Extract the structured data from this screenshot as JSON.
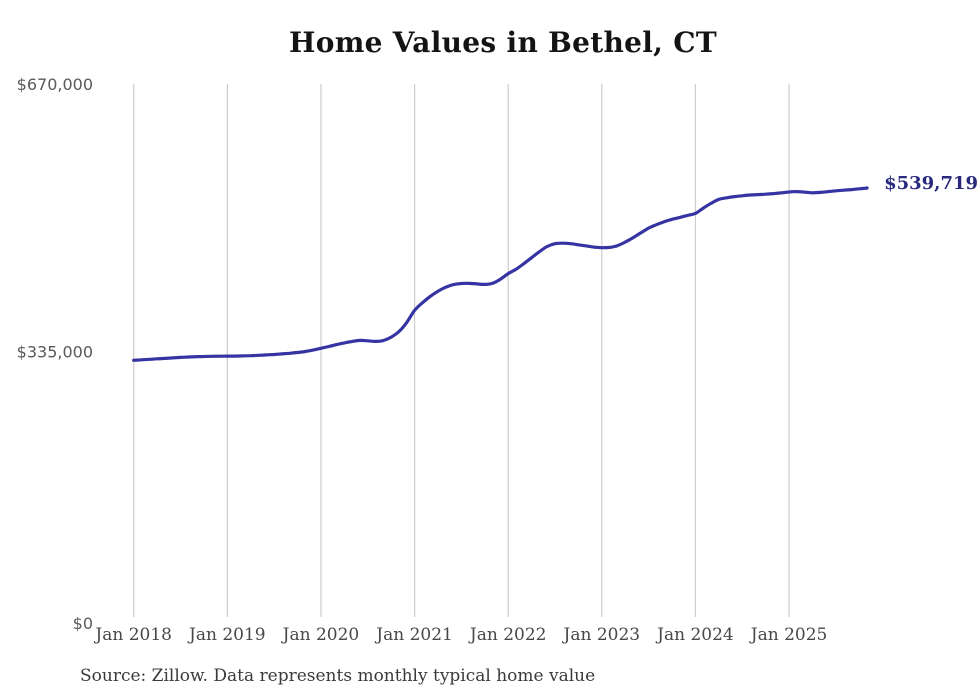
{
  "chart_data": {
    "type": "line",
    "title": "Home Values in Bethel, CT",
    "series_name": "Monthly typical home value",
    "x_interval": "month",
    "x_start": "Jan 2018",
    "x_end": "Nov 2025",
    "x_tick_labels": [
      "Jan 2018",
      "Jan 2019",
      "Jan 2020",
      "Jan 2021",
      "Jan 2022",
      "Jan 2023",
      "Jan 2024",
      "Jan 2025"
    ],
    "y_tick_labels": [
      "$0",
      "$335,000",
      "$670,000"
    ],
    "y_tick_values": [
      0,
      335000,
      670000
    ],
    "ylim": [
      0,
      670000
    ],
    "grid": "vertical-only",
    "legend": "none",
    "line_color": "#3634a3",
    "grid_color": "#cccccc",
    "end_label": "$539,719",
    "end_label_color": "#28287d",
    "last_value": 539719,
    "values": [
      324000,
      324600,
      325200,
      325800,
      326400,
      327000,
      327600,
      328100,
      328500,
      328800,
      329000,
      329100,
      329200,
      329300,
      329500,
      329800,
      330200,
      330700,
      331300,
      332000,
      332800,
      333800,
      335000,
      336800,
      339000,
      341300,
      343600,
      345800,
      347600,
      348900,
      348400,
      347600,
      348800,
      353000,
      360000,
      371500,
      386500,
      396000,
      404000,
      410500,
      415500,
      418800,
      420200,
      420300,
      419600,
      419000,
      420500,
      425500,
      432500,
      438000,
      445000,
      452500,
      460000,
      466500,
      470000,
      470600,
      470000,
      468600,
      467200,
      465800,
      465000,
      465400,
      467500,
      472000,
      477500,
      483500,
      489500,
      493800,
      497500,
      500500,
      503000,
      505500,
      508000,
      514500,
      520500,
      525500,
      527500,
      529000,
      530000,
      531000,
      531500,
      532000,
      532800,
      533600,
      534800,
      535300,
      534600,
      533800,
      534200,
      535200,
      536200,
      537000,
      537800,
      538700,
      539719
    ]
  },
  "footer": {
    "source": "Source: Zillow. Data represents monthly typical home value"
  }
}
